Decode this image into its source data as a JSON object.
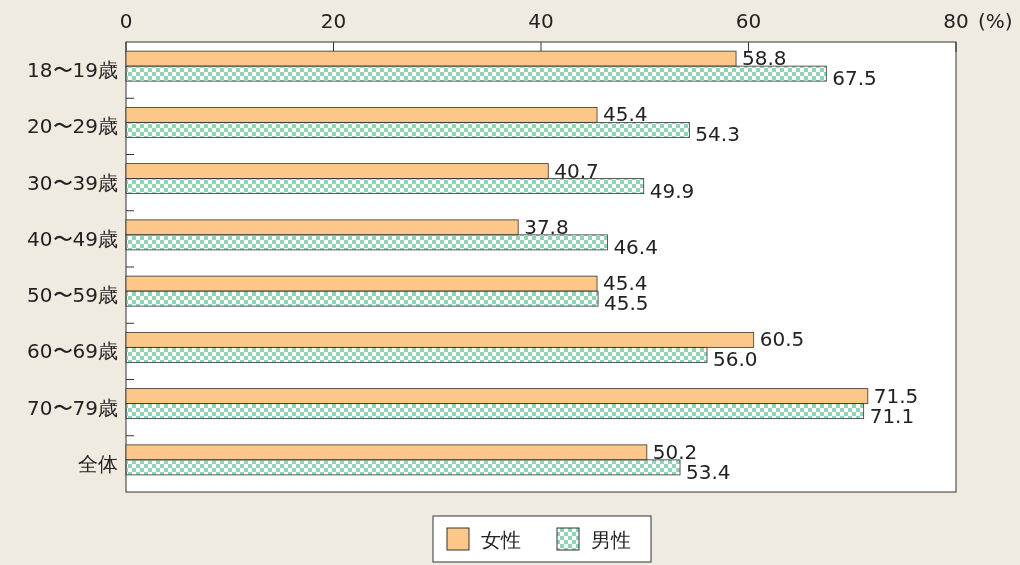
{
  "chart_data": {
    "type": "bar",
    "orientation": "horizontal",
    "xlabel": "(%)",
    "categories": [
      "18〜19歳",
      "20〜29歳",
      "30〜39歳",
      "40〜49歳",
      "50〜59歳",
      "60〜69歳",
      "70〜79歳",
      "全体"
    ],
    "series": [
      {
        "name": "女性",
        "color": "#fdc78a",
        "values": [
          58.8,
          45.4,
          40.7,
          37.8,
          45.4,
          60.5,
          71.5,
          50.2
        ],
        "value_labels": [
          "58.8",
          "45.4",
          "40.7",
          "37.8",
          "45.4",
          "60.5",
          "71.5",
          "50.2"
        ]
      },
      {
        "name": "男性",
        "color": "#8fd4b4",
        "values": [
          67.5,
          54.3,
          49.9,
          46.4,
          45.5,
          56.0,
          71.1,
          53.4
        ],
        "value_labels": [
          "67.5",
          "54.3",
          "49.9",
          "46.4",
          "45.5",
          "56.0",
          "71.1",
          "53.4"
        ]
      }
    ],
    "xlim": [
      0,
      80
    ],
    "xticks": [
      0,
      20,
      40,
      60,
      80
    ],
    "legend": "bottom",
    "grid": false
  }
}
